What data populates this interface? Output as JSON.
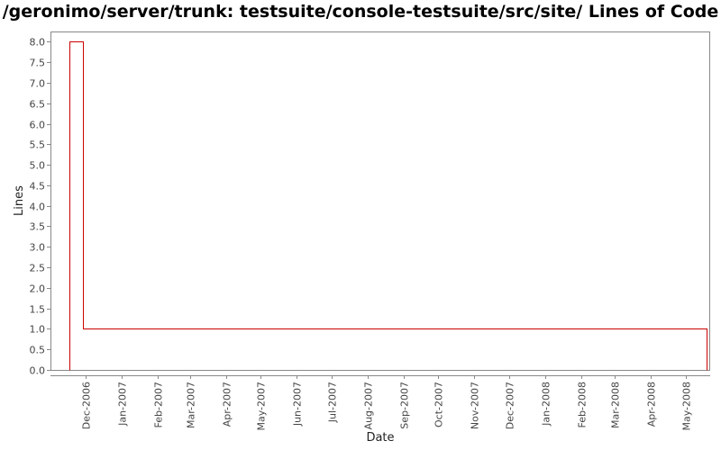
{
  "chart_data": {
    "type": "line",
    "title": "/geronimo/server/trunk: testsuite/console-testsuite/src/site/ Lines of Code",
    "xlabel": "Date",
    "ylabel": "Lines",
    "step": true,
    "xlim": [
      "2006-11-01",
      "2008-05-22"
    ],
    "ylim": [
      0,
      8.25
    ],
    "y_ticks": [
      0.0,
      0.5,
      1.0,
      1.5,
      2.0,
      2.5,
      3.0,
      3.5,
      4.0,
      4.5,
      5.0,
      5.5,
      6.0,
      6.5,
      7.0,
      7.5,
      8.0
    ],
    "y_tick_labels": [
      "0.0",
      "0.5",
      "1.0",
      "1.5",
      "2.0",
      "2.5",
      "3.0",
      "3.5",
      "4.0",
      "4.5",
      "5.0",
      "5.5",
      "6.0",
      "6.5",
      "7.0",
      "7.5",
      "8.0"
    ],
    "x_ticks": [
      "2006-12-01",
      "2007-01-01",
      "2007-02-01",
      "2007-03-01",
      "2007-04-01",
      "2007-05-01",
      "2007-06-01",
      "2007-07-01",
      "2007-08-01",
      "2007-09-01",
      "2007-10-01",
      "2007-11-01",
      "2007-12-01",
      "2008-01-01",
      "2008-02-01",
      "2008-03-01",
      "2008-04-01",
      "2008-05-01"
    ],
    "x_tick_labels": [
      "Dec-2006",
      "Jan-2007",
      "Feb-2007",
      "Mar-2007",
      "Apr-2007",
      "May-2007",
      "Jun-2007",
      "Jul-2007",
      "Aug-2007",
      "Sep-2007",
      "Oct-2007",
      "Nov-2007",
      "Dec-2007",
      "Jan-2008",
      "Feb-2008",
      "Mar-2008",
      "Apr-2008",
      "May-2008"
    ],
    "series": [
      {
        "color": "#cc0000",
        "points": [
          {
            "x": "2006-11-17",
            "y": 0
          },
          {
            "x": "2006-11-17",
            "y": 8
          },
          {
            "x": "2006-11-29",
            "y": 8
          },
          {
            "x": "2006-11-29",
            "y": 1
          },
          {
            "x": "2008-05-19",
            "y": 1
          },
          {
            "x": "2008-05-19",
            "y": 0
          }
        ]
      }
    ],
    "grid": false,
    "legend": "none"
  }
}
